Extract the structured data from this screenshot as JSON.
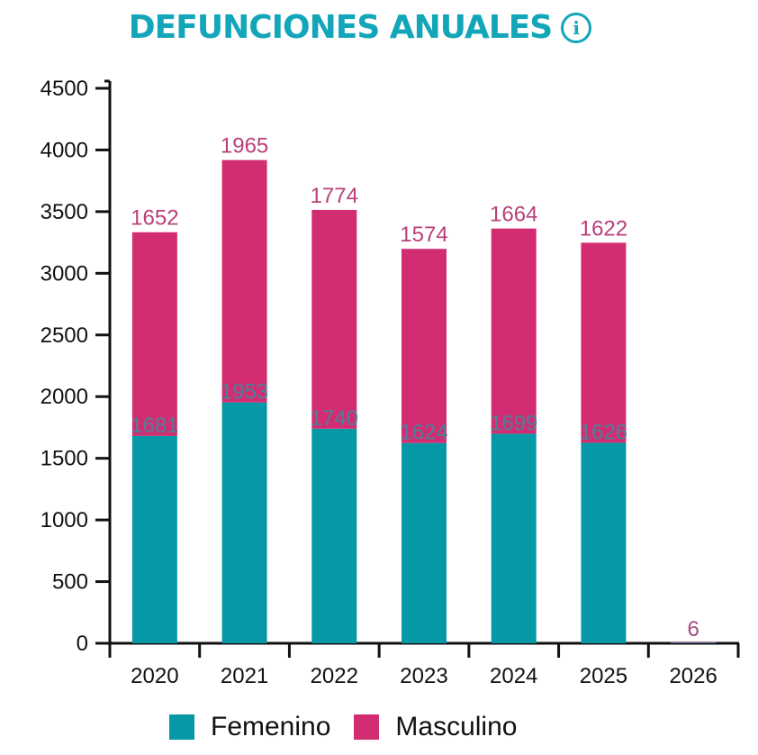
{
  "header": {
    "title": "DEFUNCIONES ANUALES",
    "info_icon": "info-circle-icon"
  },
  "colors": {
    "title": "#13a6b8",
    "femenino": "#0598a6",
    "masculino": "#d22d72",
    "femenino_label": "#4d7f98",
    "masculino_label": "#b8407a"
  },
  "chart_data": {
    "type": "bar",
    "stacked": true,
    "title": "DEFUNCIONES ANUALES",
    "xlabel": "",
    "ylabel": "",
    "categories": [
      "2020",
      "2021",
      "2022",
      "2023",
      "2024",
      "2025",
      "2026"
    ],
    "series": [
      {
        "name": "Femenino",
        "values": [
          1681,
          1953,
          1740,
          1624,
          1699,
          1626,
          6
        ]
      },
      {
        "name": "Masculino",
        "values": [
          1652,
          1965,
          1774,
          1574,
          1664,
          1622,
          6
        ]
      }
    ],
    "ylim": [
      0,
      4500
    ],
    "yticks": [
      0,
      500,
      1000,
      1500,
      2000,
      2500,
      3000,
      3500,
      4000,
      4500
    ],
    "grid": false,
    "legend": "bottom"
  },
  "legend": {
    "items": [
      {
        "label": "Femenino"
      },
      {
        "label": "Masculino"
      }
    ]
  }
}
